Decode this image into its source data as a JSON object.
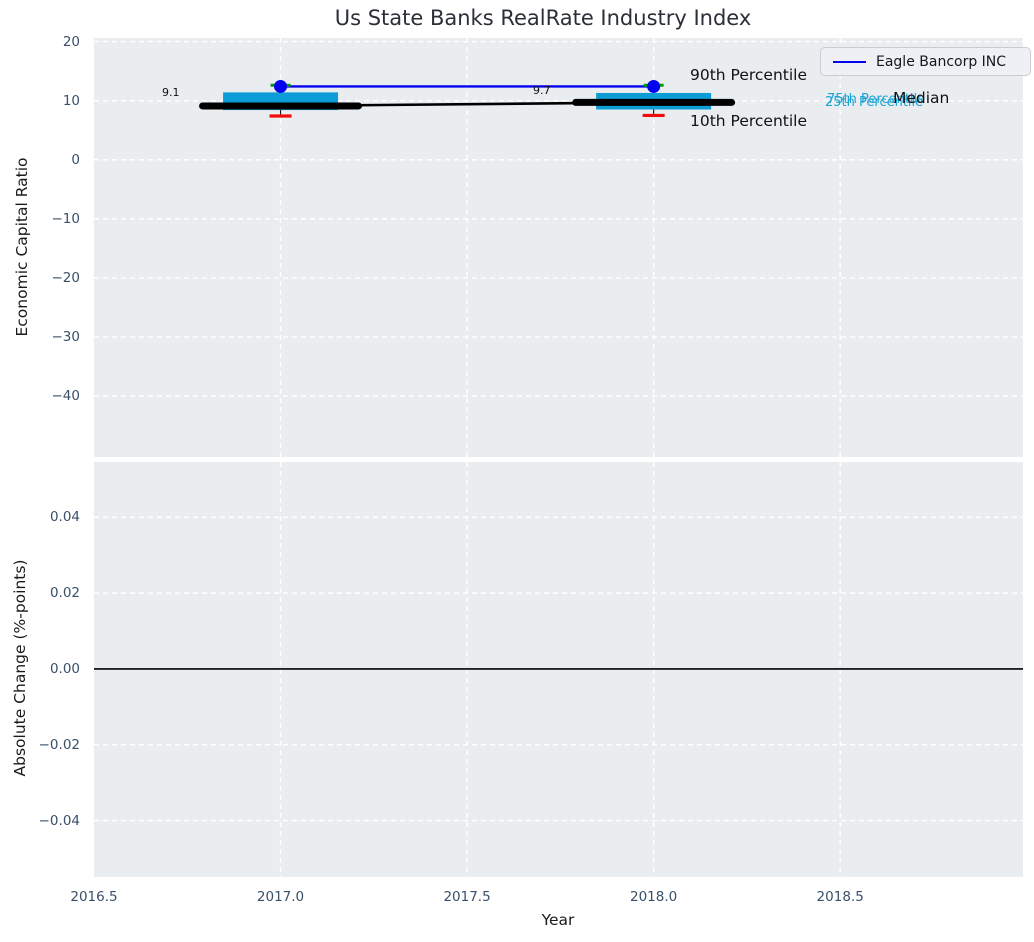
{
  "figure": {
    "title": "Us State Banks RealRate Industry Index",
    "xlabel": "Year",
    "legend": {
      "label": "Eagle Bancorp INC",
      "line_color": "#0202f0"
    }
  },
  "colors": {
    "plot_background": "#e9edef",
    "grid": "#ffffff",
    "tick_label": "#3a5069",
    "box_cyan": "#0d9dd6",
    "cyan_text": "#1ba4d6",
    "green_cap": "#00a000",
    "red_cap": "#f20d0d",
    "eagle_blue": "#0202f0",
    "median_black": "#000000"
  },
  "annotations": {
    "p90": {
      "text": "90th Percentile",
      "color": "#111111"
    },
    "p75": {
      "text": "75th Percentile",
      "color": "#1ba4d6"
    },
    "median": {
      "text": "Median",
      "color": "#111111"
    },
    "p25": {
      "text": "25th Percentile",
      "color": "#1ba4d6"
    },
    "p10": {
      "text": "10th Percentile",
      "color": "#111111"
    },
    "val_2017": {
      "text": "9.1"
    },
    "val_2018": {
      "text": "9.7"
    }
  },
  "chart_data": [
    {
      "type": "line",
      "subplot": "top",
      "ylabel": "Economic Capital Ratio",
      "x": [
        2017,
        2018
      ],
      "xlim": [
        2016.5,
        2018.99
      ],
      "ylim": [
        -50.3,
        20.6
      ],
      "yticks": [
        20,
        10,
        0,
        -10,
        -20,
        -30,
        -40
      ],
      "ytick_labels": [
        "20",
        "10",
        "0",
        "−10",
        "−20",
        "−30",
        "−40"
      ],
      "xticks": [
        2016.5,
        2017.0,
        2017.5,
        2018.0,
        2018.5
      ],
      "xtick_labels": [
        "2016.5",
        "2017.0",
        "2017.5",
        "2018.0",
        "2018.5"
      ],
      "grid": true,
      "legend_position": "upper right",
      "series": [
        {
          "name": "Eagle Bancorp INC",
          "role": "company-line",
          "color": "#0202f0",
          "values": [
            12.4,
            12.4
          ]
        },
        {
          "name": "90th Percentile",
          "role": "whisker-cap",
          "color": "#00a000",
          "values": [
            12.6,
            12.6
          ]
        },
        {
          "name": "75th Percentile",
          "role": "box-top",
          "color": "#0d9dd6",
          "values": [
            11.4,
            11.3
          ]
        },
        {
          "name": "Median",
          "role": "median-line",
          "color": "#000000",
          "values": [
            9.1,
            9.7
          ],
          "labels": [
            "9.1",
            "9.7"
          ]
        },
        {
          "name": "25th Percentile",
          "role": "box-bottom",
          "color": "#0d9dd6",
          "values": [
            8.4,
            8.5
          ]
        },
        {
          "name": "10th Percentile",
          "role": "whisker-cap",
          "color": "#f20d0d",
          "values": [
            7.4,
            7.5
          ]
        }
      ]
    },
    {
      "type": "line",
      "subplot": "bottom",
      "ylabel": "Absolute Change (%-points)",
      "xlim": [
        2016.5,
        2018.99
      ],
      "ylim": [
        -0.0549,
        0.0546
      ],
      "yticks": [
        0.04,
        0.02,
        0.0,
        -0.02,
        -0.04
      ],
      "ytick_labels": [
        "0.04",
        "0.02",
        "0.00",
        "−0.02",
        "−0.04"
      ],
      "xticks": [
        2016.5,
        2017.0,
        2017.5,
        2018.0,
        2018.5
      ],
      "xtick_labels": [
        "2016.5",
        "2017.0",
        "2017.5",
        "2018.0",
        "2018.5"
      ],
      "grid": true,
      "zero_line": 0.0,
      "series": []
    }
  ]
}
